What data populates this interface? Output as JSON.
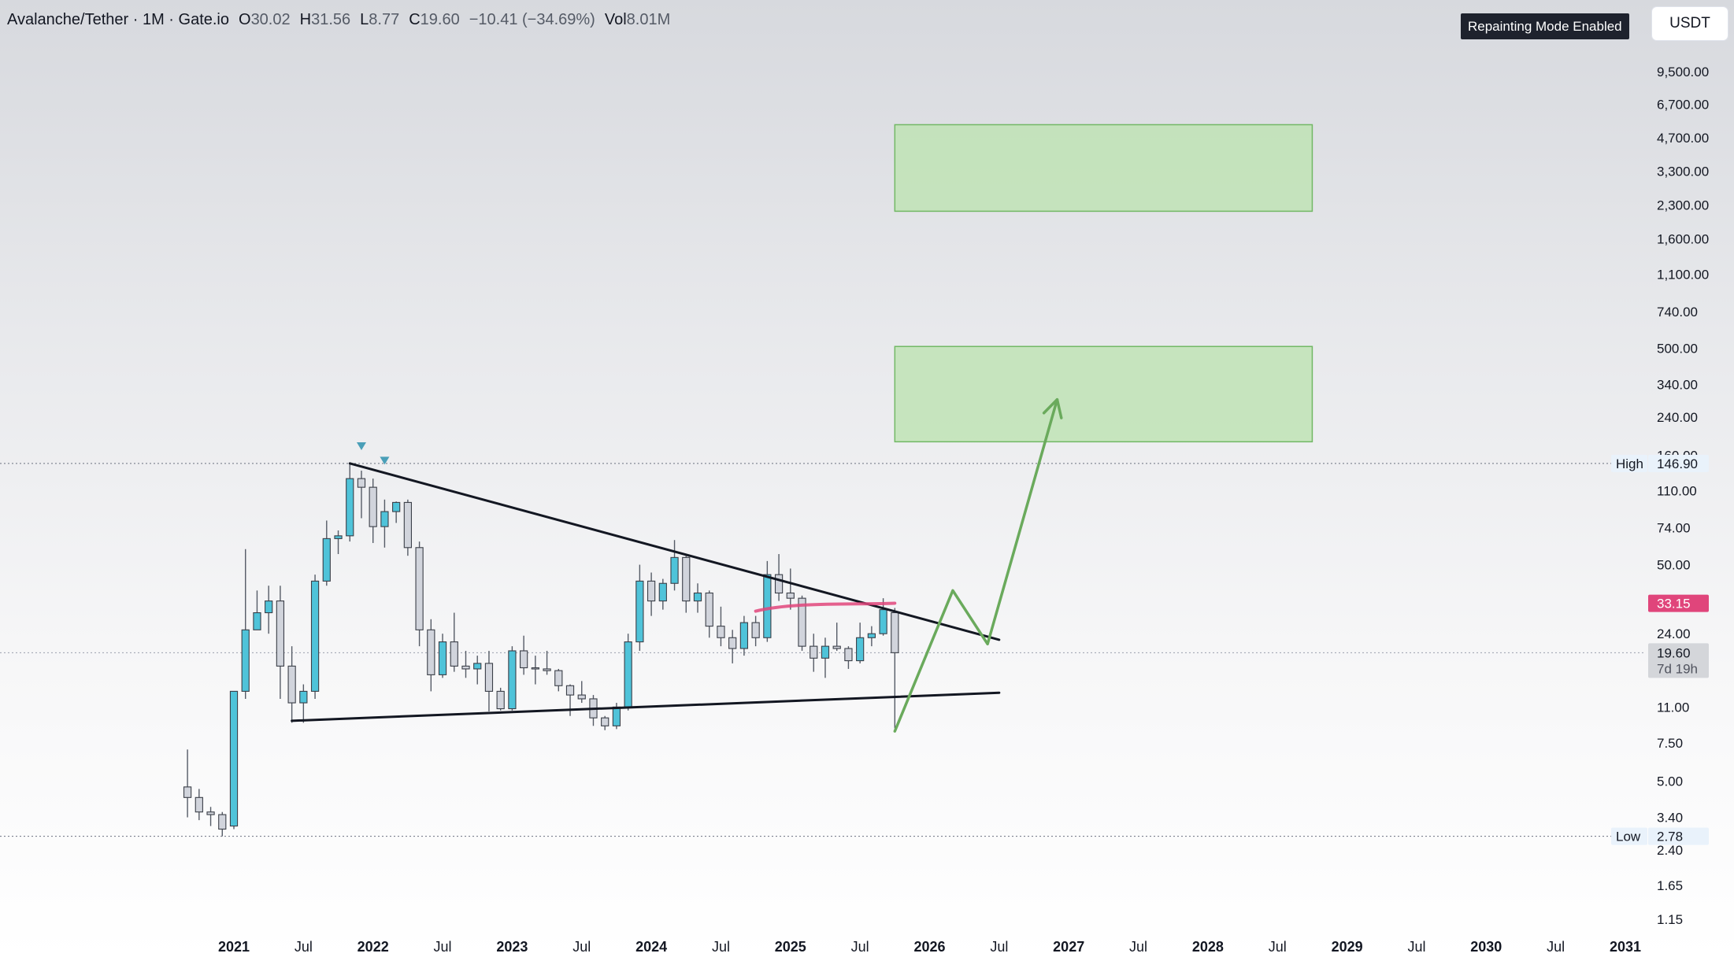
{
  "header": {
    "symbol": "Avalanche/Tether · 1M · Gate.io",
    "open_label": "O",
    "open": "30.02",
    "high_label": "H",
    "high": "31.56",
    "low_label": "L",
    "low": "8.77",
    "close_label": "C",
    "close": "19.60",
    "change": "−10.41 (−34.69%)",
    "vol_label": "Vol",
    "vol": "8.01M"
  },
  "repaint_badge": "Repainting Mode Enabled",
  "currency_button": "USDT",
  "colors": {
    "up": "#4fc3d9",
    "down": "#d1d4dc",
    "wick": "#555b66",
    "trendline": "#131722",
    "projection": "#6aaa5c",
    "zone_fill": "#bfe3b5",
    "zone_border": "#72b865",
    "red_marker": "#e0457b"
  },
  "chart_data": {
    "type": "candlestick",
    "scale": "log",
    "ylim": [
      1.1,
      14000
    ],
    "xlim": [
      "2020-07",
      "2031-03"
    ],
    "y_ticks": [
      "9,500.00",
      "6,700.00",
      "4,700.00",
      "3,300.00",
      "2,300.00",
      "1,600.00",
      "1,100.00",
      "740.00",
      "500.00",
      "340.00",
      "240.00",
      "160.00",
      "110.00",
      "74.00",
      "50.00",
      "24.00",
      "11.00",
      "7.50",
      "5.00",
      "3.40",
      "2.40",
      "1.65",
      "1.15"
    ],
    "x_ticks": [
      {
        "label": "2021",
        "t": "2021-01",
        "bold": true
      },
      {
        "label": "Jul",
        "t": "2021-07",
        "bold": false
      },
      {
        "label": "2022",
        "t": "2022-01",
        "bold": true
      },
      {
        "label": "Jul",
        "t": "2022-07",
        "bold": false
      },
      {
        "label": "2023",
        "t": "2023-01",
        "bold": true
      },
      {
        "label": "Jul",
        "t": "2023-07",
        "bold": false
      },
      {
        "label": "2024",
        "t": "2024-01",
        "bold": true
      },
      {
        "label": "Jul",
        "t": "2024-07",
        "bold": false
      },
      {
        "label": "2025",
        "t": "2025-01",
        "bold": true
      },
      {
        "label": "Jul",
        "t": "2025-07",
        "bold": false
      },
      {
        "label": "2026",
        "t": "2026-01",
        "bold": true
      },
      {
        "label": "Jul",
        "t": "2026-07",
        "bold": false
      },
      {
        "label": "2027",
        "t": "2027-01",
        "bold": true
      },
      {
        "label": "Jul",
        "t": "2027-07",
        "bold": false
      },
      {
        "label": "2028",
        "t": "2028-01",
        "bold": true
      },
      {
        "label": "Jul",
        "t": "2028-07",
        "bold": false
      },
      {
        "label": "2029",
        "t": "2029-01",
        "bold": true
      },
      {
        "label": "Jul",
        "t": "2029-07",
        "bold": false
      },
      {
        "label": "2030",
        "t": "2030-01",
        "bold": true
      },
      {
        "label": "Jul",
        "t": "2030-07",
        "bold": false
      },
      {
        "label": "2031",
        "t": "2031-01",
        "bold": true
      }
    ],
    "candles": [
      {
        "t": "2020-09",
        "o": 4.7,
        "h": 7.0,
        "l": 3.4,
        "c": 4.2
      },
      {
        "t": "2020-10",
        "o": 4.2,
        "h": 4.6,
        "l": 3.3,
        "c": 3.6
      },
      {
        "t": "2020-11",
        "o": 3.6,
        "h": 3.8,
        "l": 3.1,
        "c": 3.5
      },
      {
        "t": "2020-12",
        "o": 3.5,
        "h": 3.6,
        "l": 2.78,
        "c": 3.0
      },
      {
        "t": "2021-01",
        "o": 3.1,
        "h": 13.0,
        "l": 3.0,
        "c": 13.0
      },
      {
        "t": "2021-02",
        "o": 13.0,
        "h": 59.0,
        "l": 12.0,
        "c": 25.0
      },
      {
        "t": "2021-03",
        "o": 25.0,
        "h": 38.0,
        "l": 25.0,
        "c": 30.0
      },
      {
        "t": "2021-04",
        "o": 30.0,
        "h": 40.0,
        "l": 24.0,
        "c": 34.0
      },
      {
        "t": "2021-05",
        "o": 34.0,
        "h": 40.0,
        "l": 12.0,
        "c": 17.0
      },
      {
        "t": "2021-06",
        "o": 17.0,
        "h": 21.0,
        "l": 9.3,
        "c": 11.5
      },
      {
        "t": "2021-07",
        "o": 11.5,
        "h": 14.0,
        "l": 9.3,
        "c": 13.0
      },
      {
        "t": "2021-08",
        "o": 13.0,
        "h": 45.0,
        "l": 12.0,
        "c": 42.0
      },
      {
        "t": "2021-09",
        "o": 42.0,
        "h": 80.0,
        "l": 40.0,
        "c": 66.0
      },
      {
        "t": "2021-10",
        "o": 66.0,
        "h": 72.0,
        "l": 56.0,
        "c": 68.0
      },
      {
        "t": "2021-11",
        "o": 68.0,
        "h": 146.9,
        "l": 64.0,
        "c": 125.0
      },
      {
        "t": "2021-12",
        "o": 125.0,
        "h": 136.0,
        "l": 82.0,
        "c": 114.0
      },
      {
        "t": "2022-01",
        "o": 114.0,
        "h": 125.0,
        "l": 63.0,
        "c": 75.0
      },
      {
        "t": "2022-02",
        "o": 75.0,
        "h": 100.0,
        "l": 60.0,
        "c": 88.0
      },
      {
        "t": "2022-03",
        "o": 88.0,
        "h": 98.0,
        "l": 78.0,
        "c": 97.0
      },
      {
        "t": "2022-04",
        "o": 97.0,
        "h": 100.0,
        "l": 55.0,
        "c": 60.0
      },
      {
        "t": "2022-05",
        "o": 60.0,
        "h": 64.0,
        "l": 21.0,
        "c": 25.0
      },
      {
        "t": "2022-06",
        "o": 25.0,
        "h": 28.0,
        "l": 13.0,
        "c": 15.5
      },
      {
        "t": "2022-07",
        "o": 15.5,
        "h": 24.0,
        "l": 15.0,
        "c": 22.0
      },
      {
        "t": "2022-08",
        "o": 22.0,
        "h": 30.0,
        "l": 16.0,
        "c": 17.0
      },
      {
        "t": "2022-09",
        "o": 17.0,
        "h": 20.0,
        "l": 15.0,
        "c": 16.5
      },
      {
        "t": "2022-10",
        "o": 16.5,
        "h": 19.0,
        "l": 14.0,
        "c": 17.5
      },
      {
        "t": "2022-11",
        "o": 17.5,
        "h": 20.0,
        "l": 10.5,
        "c": 13.0
      },
      {
        "t": "2022-12",
        "o": 13.0,
        "h": 13.5,
        "l": 10.6,
        "c": 10.8
      },
      {
        "t": "2023-01",
        "o": 10.8,
        "h": 21.0,
        "l": 10.6,
        "c": 20.0
      },
      {
        "t": "2023-02",
        "o": 20.0,
        "h": 23.5,
        "l": 15.5,
        "c": 16.7
      },
      {
        "t": "2023-03",
        "o": 16.7,
        "h": 19.0,
        "l": 14.0,
        "c": 16.5
      },
      {
        "t": "2023-04",
        "o": 16.5,
        "h": 20.0,
        "l": 15.5,
        "c": 16.2
      },
      {
        "t": "2023-05",
        "o": 16.2,
        "h": 16.5,
        "l": 13.0,
        "c": 13.8
      },
      {
        "t": "2023-06",
        "o": 13.8,
        "h": 14.0,
        "l": 10.0,
        "c": 12.5
      },
      {
        "t": "2023-07",
        "o": 12.5,
        "h": 14.5,
        "l": 11.5,
        "c": 12.0
      },
      {
        "t": "2023-08",
        "o": 12.0,
        "h": 12.5,
        "l": 9.0,
        "c": 9.8
      },
      {
        "t": "2023-09",
        "o": 9.8,
        "h": 10.0,
        "l": 8.6,
        "c": 9.0
      },
      {
        "t": "2023-10",
        "o": 9.0,
        "h": 11.5,
        "l": 8.7,
        "c": 11.0
      },
      {
        "t": "2023-11",
        "o": 11.0,
        "h": 24.0,
        "l": 10.6,
        "c": 22.0
      },
      {
        "t": "2023-12",
        "o": 22.0,
        "h": 50.0,
        "l": 20.0,
        "c": 42.0
      },
      {
        "t": "2024-01",
        "o": 42.0,
        "h": 46.0,
        "l": 29.0,
        "c": 34.0
      },
      {
        "t": "2024-02",
        "o": 34.0,
        "h": 43.0,
        "l": 31.0,
        "c": 41.0
      },
      {
        "t": "2024-03",
        "o": 41.0,
        "h": 65.0,
        "l": 38.0,
        "c": 54.0
      },
      {
        "t": "2024-04",
        "o": 54.0,
        "h": 55.0,
        "l": 30.0,
        "c": 34.0
      },
      {
        "t": "2024-05",
        "o": 34.0,
        "h": 41.0,
        "l": 30.0,
        "c": 37.0
      },
      {
        "t": "2024-06",
        "o": 37.0,
        "h": 38.0,
        "l": 23.0,
        "c": 26.0
      },
      {
        "t": "2024-07",
        "o": 26.0,
        "h": 32.0,
        "l": 21.0,
        "c": 23.0
      },
      {
        "t": "2024-08",
        "o": 23.0,
        "h": 25.0,
        "l": 17.5,
        "c": 20.5
      },
      {
        "t": "2024-09",
        "o": 20.5,
        "h": 29.0,
        "l": 19.0,
        "c": 27.0
      },
      {
        "t": "2024-10",
        "o": 27.0,
        "h": 29.0,
        "l": 21.0,
        "c": 23.0
      },
      {
        "t": "2024-11",
        "o": 23.0,
        "h": 52.0,
        "l": 22.0,
        "c": 45.0
      },
      {
        "t": "2024-12",
        "o": 45.0,
        "h": 56.0,
        "l": 34.0,
        "c": 37.0
      },
      {
        "t": "2025-01",
        "o": 37.0,
        "h": 48.0,
        "l": 31.0,
        "c": 35.0
      },
      {
        "t": "2025-02",
        "o": 35.0,
        "h": 36.0,
        "l": 20.0,
        "c": 21.0
      },
      {
        "t": "2025-03",
        "o": 21.0,
        "h": 24.0,
        "l": 16.0,
        "c": 18.5
      },
      {
        "t": "2025-04",
        "o": 18.5,
        "h": 23.0,
        "l": 15.0,
        "c": 21.0
      },
      {
        "t": "2025-05",
        "o": 21.0,
        "h": 27.0,
        "l": 20.0,
        "c": 20.5
      },
      {
        "t": "2025-06",
        "o": 20.5,
        "h": 21.0,
        "l": 16.5,
        "c": 18.0
      },
      {
        "t": "2025-07",
        "o": 18.0,
        "h": 27.0,
        "l": 17.5,
        "c": 23.0
      },
      {
        "t": "2025-08",
        "o": 23.0,
        "h": 26.0,
        "l": 21.0,
        "c": 24.0
      },
      {
        "t": "2025-09",
        "o": 24.0,
        "h": 35.0,
        "l": 23.5,
        "c": 31.0
      },
      {
        "t": "2025-10",
        "o": 30.02,
        "h": 31.56,
        "l": 8.77,
        "c": 19.6
      }
    ],
    "trendlines": [
      {
        "name": "descending-resistance",
        "from": {
          "t": "2021-11",
          "v": 146.9
        },
        "to": {
          "t": "2026-07",
          "v": 22.5
        }
      },
      {
        "name": "ascending-support",
        "from": {
          "t": "2021-06",
          "v": 9.5
        },
        "to": {
          "t": "2026-07",
          "v": 12.8
        }
      }
    ],
    "red_marker": {
      "from": {
        "t": "2024-10",
        "v": 30.5
      },
      "to": {
        "t": "2025-10",
        "v": 33.2
      }
    },
    "target_zones": [
      {
        "t_start": "2025-10",
        "t_end": "2028-10",
        "low": 185,
        "high": 510
      },
      {
        "t_start": "2025-10",
        "t_end": "2028-10",
        "low": 2150,
        "high": 5400
      }
    ],
    "projection_path": [
      {
        "t": "2025-10",
        "v": 8.5
      },
      {
        "t": "2026-03",
        "v": 38
      },
      {
        "t": "2026-06",
        "v": 21.5
      },
      {
        "t": "2026-12",
        "v": 290
      }
    ],
    "triangle_markers": [
      {
        "t": "2021-12",
        "v": 175
      },
      {
        "t": "2022-02",
        "v": 150
      }
    ],
    "price_labels": {
      "high_label": "High",
      "high_value": "146.90",
      "high_v": 146.9,
      "low_label": "Low",
      "low_value": "2.78",
      "low_v": 2.78,
      "red_value": "33.15",
      "red_v": 33.15,
      "last_value": "19.60",
      "last_v": 19.6,
      "countdown": "7d 19h"
    }
  }
}
